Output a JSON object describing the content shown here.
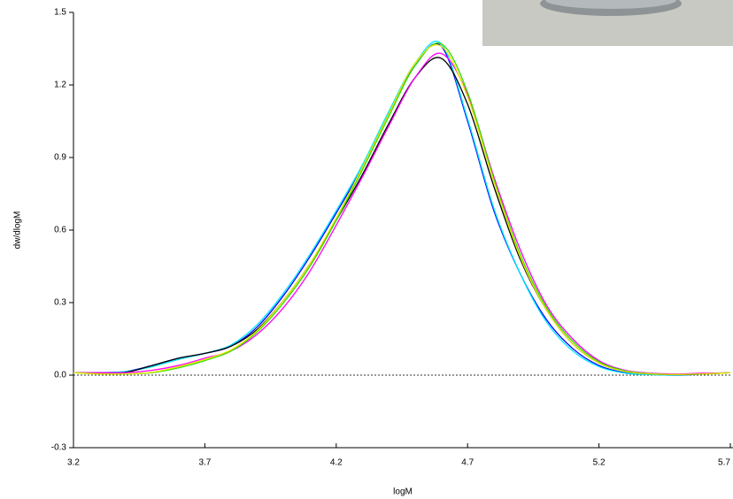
{
  "chart_data": {
    "type": "line",
    "x_label": "logM",
    "y_label": "dw/dlogM",
    "x": [
      3.2,
      3.3,
      3.4,
      3.5,
      3.6,
      3.7,
      3.8,
      3.9,
      4.0,
      4.1,
      4.2,
      4.3,
      4.4,
      4.5,
      4.6,
      4.7,
      4.8,
      4.9,
      5.0,
      5.1,
      5.2,
      5.3,
      5.4,
      5.5,
      5.6,
      5.7
    ],
    "series": [
      {
        "color": "#0000ff",
        "values": [
          0.01,
          0.01,
          0.015,
          0.04,
          0.07,
          0.09,
          0.12,
          0.2,
          0.33,
          0.49,
          0.67,
          0.86,
          1.08,
          1.28,
          1.36,
          1.05,
          0.68,
          0.42,
          0.23,
          0.11,
          0.04,
          0.01,
          0.003,
          0.0,
          0.005,
          0.01
        ]
      },
      {
        "color": "#00e5ff",
        "values": [
          0.01,
          0.01,
          0.015,
          0.035,
          0.065,
          0.09,
          0.125,
          0.21,
          0.34,
          0.5,
          0.68,
          0.87,
          1.09,
          1.29,
          1.37,
          1.06,
          0.69,
          0.42,
          0.22,
          0.1,
          0.035,
          0.008,
          0.002,
          0.0,
          0.005,
          0.01
        ]
      },
      {
        "color": "#000000",
        "values": [
          0.01,
          0.01,
          0.012,
          0.04,
          0.07,
          0.09,
          0.12,
          0.19,
          0.31,
          0.46,
          0.64,
          0.83,
          1.04,
          1.23,
          1.31,
          1.12,
          0.78,
          0.48,
          0.27,
          0.13,
          0.05,
          0.015,
          0.005,
          0.002,
          0.005,
          0.01
        ]
      },
      {
        "color": "#ff00ff",
        "values": [
          0.01,
          0.01,
          0.01,
          0.02,
          0.04,
          0.07,
          0.1,
          0.17,
          0.28,
          0.43,
          0.62,
          0.82,
          1.03,
          1.23,
          1.33,
          1.16,
          0.82,
          0.52,
          0.29,
          0.15,
          0.06,
          0.02,
          0.008,
          0.005,
          0.008,
          0.01
        ]
      },
      {
        "color": "#33dd00",
        "values": [
          0.01,
          0.005,
          0.005,
          0.01,
          0.03,
          0.06,
          0.1,
          0.18,
          0.3,
          0.45,
          0.64,
          0.85,
          1.07,
          1.28,
          1.37,
          1.17,
          0.81,
          0.5,
          0.28,
          0.14,
          0.055,
          0.018,
          0.006,
          0.003,
          0.005,
          0.01
        ]
      },
      {
        "color": "#e8e800",
        "values": [
          0.01,
          0.005,
          0.005,
          0.012,
          0.035,
          0.065,
          0.105,
          0.185,
          0.31,
          0.46,
          0.65,
          0.86,
          1.08,
          1.29,
          1.36,
          1.15,
          0.8,
          0.49,
          0.27,
          0.13,
          0.05,
          0.015,
          0.005,
          0.003,
          0.005,
          0.01
        ]
      }
    ],
    "xlim": [
      3.2,
      5.7
    ],
    "xticks": [
      3.2,
      3.7,
      4.2,
      4.7,
      5.2,
      5.7
    ],
    "ylim": [
      -0.3,
      1.5
    ],
    "yticks": [
      -0.3,
      {
        "value": 0,
        "label": "0.0"
      },
      0.3,
      0.6,
      0.9,
      1.2,
      1.5
    ],
    "reference_line": 0
  }
}
